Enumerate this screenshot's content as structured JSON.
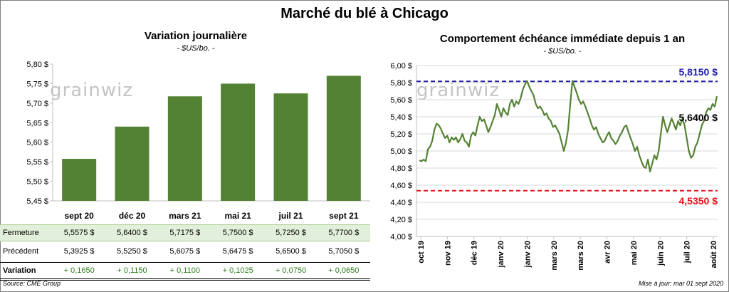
{
  "main_title": "Marché du blé à Chicago",
  "watermark": "grainwiz",
  "left_panel": {
    "title": "Variation journalière",
    "unit": "- $US/bo. -"
  },
  "right_panel": {
    "title": "Comportement échéance immédiate depuis 1 an",
    "unit": "- $US/bo. -"
  },
  "table": {
    "row_labels": [
      "Fermeture",
      "Précédent",
      "Variation"
    ],
    "fermeture": [
      "5,5575  $",
      "5,6400  $",
      "5,7175  $",
      "5,7500  $",
      "5,7250  $",
      "5,7700  $"
    ],
    "precedent": [
      "5,3925  $",
      "5,5250  $",
      "5,6075  $",
      "5,6475  $",
      "5,6500  $",
      "5,7050  $"
    ],
    "variation": [
      "+ 0,1650",
      "+ 0,1150",
      "+ 0,1100",
      "+ 0,1025",
      "+ 0,0750",
      "+ 0,0650"
    ]
  },
  "footer": {
    "source": "Source: CME Group",
    "updated": "Mise à jour: mar 01 sept 2020"
  },
  "colors": {
    "bar": "#548235",
    "line": "#548235",
    "max_line": "#1f1fa8",
    "min_line": "#e8141b",
    "grid": "#d9d9d9"
  },
  "chart_data": [
    {
      "type": "bar",
      "categories": [
        "sept 20",
        "déc 20",
        "mars 21",
        "mai 21",
        "juil 21",
        "sept 21"
      ],
      "values": [
        5.5575,
        5.64,
        5.7175,
        5.75,
        5.725,
        5.77
      ],
      "yticks": [
        "5,45 $",
        "5,50 $",
        "5,55 $",
        "5,60 $",
        "5,65 $",
        "5,70 $",
        "5,75 $",
        "5,80 $"
      ],
      "ylim": [
        5.45,
        5.8
      ],
      "grid": false
    },
    {
      "type": "line",
      "xticks": [
        "oct 19",
        "nov 19",
        "déc 19",
        "janv 20",
        "janv 20",
        "mars 20",
        "mars 20",
        "avr 20",
        "mai 20",
        "juin 20",
        "juil 20",
        "août 20"
      ],
      "yticks": [
        "4,00 $",
        "4,20 $",
        "4,40 $",
        "4,60 $",
        "4,80 $",
        "5,00 $",
        "5,20 $",
        "5,40 $",
        "5,60 $",
        "5,80 $",
        "6,00 $"
      ],
      "ylim": [
        4.0,
        6.0
      ],
      "grid": true,
      "values": [
        4.89,
        4.88,
        4.9,
        4.88,
        5.02,
        5.05,
        5.12,
        5.25,
        5.32,
        5.3,
        5.26,
        5.2,
        5.15,
        5.18,
        5.1,
        5.16,
        5.13,
        5.16,
        5.1,
        5.14,
        5.2,
        5.12,
        5.1,
        5.05,
        5.18,
        5.22,
        5.18,
        5.3,
        5.4,
        5.35,
        5.37,
        5.3,
        5.22,
        5.28,
        5.35,
        5.42,
        5.55,
        5.48,
        5.4,
        5.5,
        5.45,
        5.42,
        5.55,
        5.6,
        5.52,
        5.58,
        5.55,
        5.62,
        5.72,
        5.78,
        5.82,
        5.75,
        5.7,
        5.65,
        5.55,
        5.5,
        5.52,
        5.48,
        5.42,
        5.44,
        5.38,
        5.35,
        5.28,
        5.3,
        5.25,
        5.2,
        5.1,
        5.0,
        5.1,
        5.25,
        5.55,
        5.82,
        5.75,
        5.68,
        5.6,
        5.55,
        5.58,
        5.52,
        5.45,
        5.38,
        5.3,
        5.25,
        5.28,
        5.2,
        5.15,
        5.1,
        5.12,
        5.18,
        5.22,
        5.15,
        5.12,
        5.08,
        5.12,
        5.18,
        5.22,
        5.28,
        5.3,
        5.22,
        5.15,
        5.08,
        5.0,
        5.05,
        4.95,
        4.88,
        4.82,
        4.8,
        4.9,
        4.76,
        4.85,
        4.95,
        4.9,
        5.0,
        5.2,
        5.4,
        5.3,
        5.22,
        5.3,
        5.38,
        5.32,
        5.25,
        5.35,
        5.3,
        5.38,
        5.3,
        5.15,
        5.0,
        4.92,
        4.95,
        5.05,
        5.1,
        5.2,
        5.3,
        5.35,
        5.45,
        5.5,
        5.48,
        5.55,
        5.52,
        5.64
      ],
      "max_line": {
        "value": 5.815,
        "label": "5,8150  $"
      },
      "min_line": {
        "value": 4.535,
        "label": "4,5350  $"
      },
      "last_label": "5,6400  $"
    }
  ]
}
